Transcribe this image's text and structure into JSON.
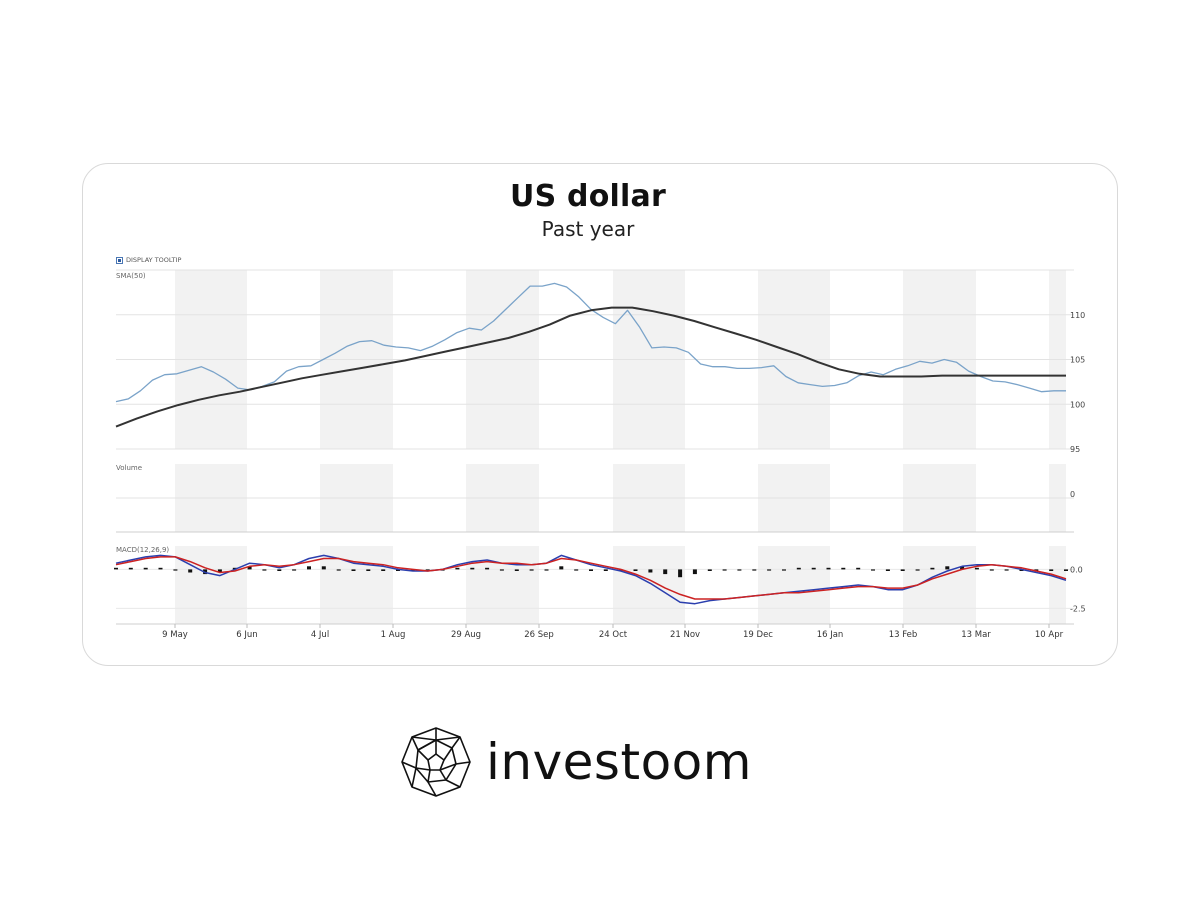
{
  "chart_data": {
    "type": "line",
    "title": "US dollar",
    "subtitle": "Past year",
    "tooltip_toggle_label": "DISPLAY TOOLTIP",
    "x_tick_labels": [
      "9 May",
      "6 Jun",
      "4 Jul",
      "1 Aug",
      "29 Aug",
      "26 Sep",
      "24 Oct",
      "21 Nov",
      "19 Dec",
      "16 Jan",
      "13 Feb",
      "13 Mar",
      "10 Apr"
    ],
    "panels": [
      {
        "name": "SMA(50)",
        "ylim": [
          95,
          115
        ],
        "y_ticks": [
          "95",
          "100",
          "105",
          "110"
        ],
        "series": [
          {
            "role": "price",
            "color": "#7aa3c9",
            "values": [
              100.3,
              100.6,
              101.5,
              102.7,
              103.3,
              103.4,
              103.8,
              104.2,
              103.6,
              102.8,
              101.8,
              101.6,
              102.0,
              102.5,
              103.7,
              104.2,
              104.3,
              105.0,
              105.7,
              106.5,
              107.0,
              107.1,
              106.6,
              106.4,
              106.3,
              106.0,
              106.5,
              107.2,
              108.0,
              108.5,
              108.3,
              109.3,
              110.6,
              111.9,
              113.2,
              113.2,
              113.5,
              113.1,
              112.0,
              110.6,
              109.7,
              109.0,
              110.5,
              108.6,
              106.3,
              106.4,
              106.3,
              105.8,
              104.5,
              104.2,
              104.2,
              104.0,
              104.0,
              104.1,
              104.3,
              103.1,
              102.4,
              102.2,
              102.0,
              102.1,
              102.4,
              103.2,
              103.6,
              103.3,
              103.9,
              104.3,
              104.8,
              104.6,
              105.0,
              104.7,
              103.7,
              103.1,
              102.6,
              102.5,
              102.2,
              101.8,
              101.4,
              101.5,
              101.5
            ]
          },
          {
            "role": "sma",
            "color": "#333333",
            "values": [
              97.5,
              98.4,
              99.2,
              99.9,
              100.5,
              101.0,
              101.4,
              101.9,
              102.4,
              102.9,
              103.3,
              103.7,
              104.1,
              104.5,
              104.9,
              105.4,
              105.9,
              106.4,
              106.9,
              107.4,
              108.1,
              108.9,
              109.9,
              110.5,
              110.8,
              110.8,
              110.4,
              109.9,
              109.3,
              108.6,
              107.9,
              107.2,
              106.4,
              105.6,
              104.7,
              103.9,
              103.4,
              103.1,
              103.1,
              103.1,
              103.2,
              103.2,
              103.2,
              103.2,
              103.2,
              103.2,
              103.2
            ]
          }
        ]
      },
      {
        "name": "Volume",
        "y_ticks": [
          "0"
        ]
      },
      {
        "name": "MACD(12,26,9)",
        "ylim": [
          -3.5,
          1.5
        ],
        "y_ticks": [
          "0.0",
          "-2.5"
        ],
        "series": [
          {
            "role": "macd",
            "color": "#2b3fae",
            "values": [
              0.4,
              0.6,
              0.8,
              0.9,
              0.8,
              0.3,
              -0.2,
              -0.4,
              0.0,
              0.4,
              0.3,
              0.1,
              0.3,
              0.7,
              0.9,
              0.7,
              0.4,
              0.3,
              0.2,
              0.0,
              -0.1,
              -0.1,
              0.0,
              0.3,
              0.5,
              0.6,
              0.4,
              0.3,
              0.3,
              0.4,
              0.9,
              0.6,
              0.3,
              0.1,
              -0.1,
              -0.4,
              -0.9,
              -1.5,
              -2.1,
              -2.2,
              -2.0,
              -1.9,
              -1.8,
              -1.7,
              -1.6,
              -1.5,
              -1.4,
              -1.3,
              -1.2,
              -1.1,
              -1.0,
              -1.1,
              -1.3,
              -1.3,
              -1.0,
              -0.5,
              -0.1,
              0.2,
              0.3,
              0.3,
              0.2,
              0.0,
              -0.2,
              -0.4,
              -0.7
            ]
          },
          {
            "role": "signal",
            "color": "#cc2222",
            "values": [
              0.3,
              0.5,
              0.7,
              0.8,
              0.8,
              0.5,
              0.1,
              -0.2,
              -0.1,
              0.2,
              0.3,
              0.2,
              0.3,
              0.5,
              0.7,
              0.7,
              0.5,
              0.4,
              0.3,
              0.1,
              0.0,
              -0.1,
              0.0,
              0.2,
              0.4,
              0.5,
              0.4,
              0.4,
              0.3,
              0.4,
              0.7,
              0.6,
              0.4,
              0.2,
              0.0,
              -0.3,
              -0.7,
              -1.2,
              -1.6,
              -1.9,
              -1.9,
              -1.9,
              -1.8,
              -1.7,
              -1.6,
              -1.5,
              -1.5,
              -1.4,
              -1.3,
              -1.2,
              -1.1,
              -1.1,
              -1.2,
              -1.2,
              -1.0,
              -0.6,
              -0.3,
              0.0,
              0.2,
              0.3,
              0.2,
              0.1,
              -0.1,
              -0.3,
              -0.6
            ]
          },
          {
            "role": "histogram",
            "color": "#111111",
            "values": [
              0.1,
              0.1,
              0.1,
              0.1,
              0.0,
              -0.2,
              -0.3,
              -0.2,
              0.1,
              0.2,
              0.0,
              -0.1,
              0.0,
              0.2,
              0.2,
              0.0,
              -0.1,
              -0.1,
              -0.1,
              -0.1,
              -0.1,
              0.0,
              0.0,
              0.1,
              0.1,
              0.1,
              0.0,
              -0.1,
              0.0,
              0.0,
              0.2,
              0.0,
              -0.1,
              -0.1,
              -0.1,
              -0.1,
              -0.2,
              -0.3,
              -0.5,
              -0.3,
              -0.1,
              0.0,
              0.0,
              0.0,
              0.0,
              0.0,
              0.1,
              0.1,
              0.1,
              0.1,
              0.1,
              0.0,
              -0.1,
              -0.1,
              0.0,
              0.1,
              0.2,
              0.2,
              0.1,
              0.0,
              0.0,
              -0.1,
              -0.1,
              -0.1,
              -0.1
            ]
          }
        ]
      }
    ],
    "grid": true,
    "legend": "none"
  },
  "brand": {
    "name": "investoom",
    "logo_icon": "geodesic-sphere-icon"
  }
}
